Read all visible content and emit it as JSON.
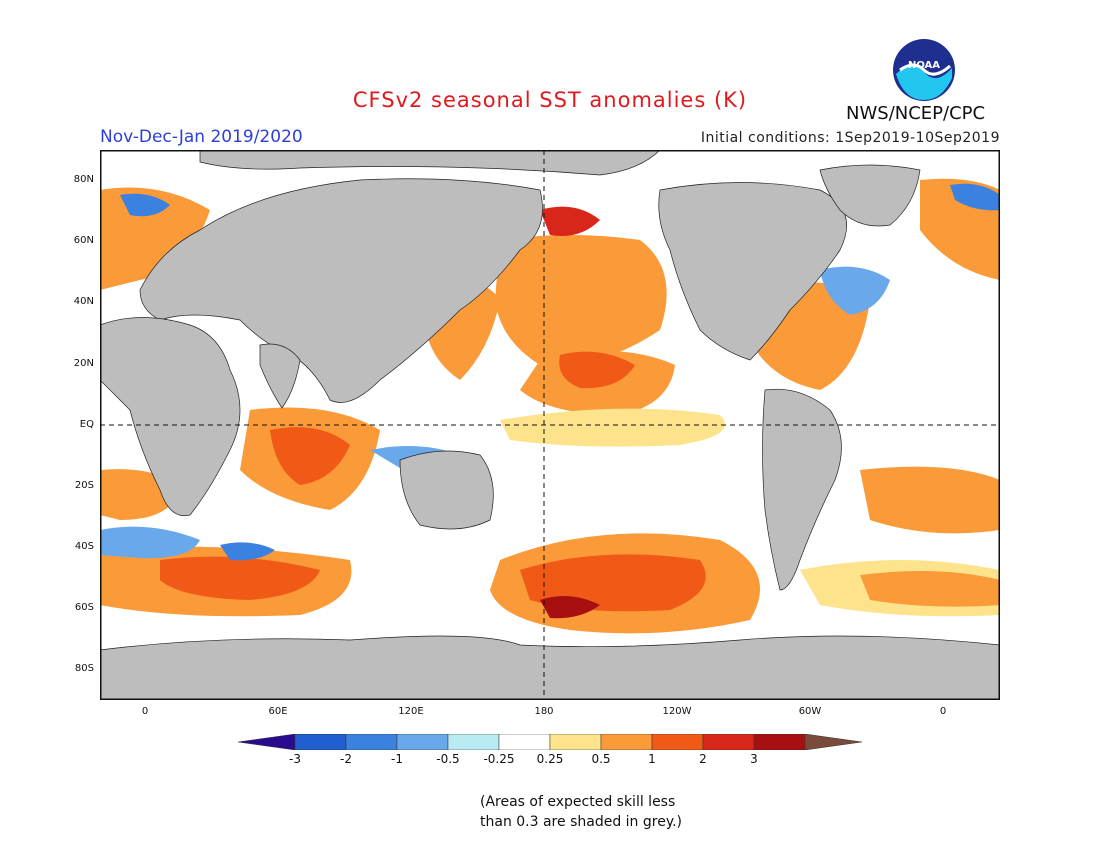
{
  "header": {
    "title": "CFSv2 seasonal SST anomalies (K)",
    "season": "Nov-Dec-Jan 2019/2020",
    "initial_conditions": "Initial conditions: 1Sep2019-10Sep2019",
    "agency": "NWS/NCEP/CPC",
    "logo_text": "NOAA"
  },
  "map": {
    "lat_labels": [
      "80N",
      "60N",
      "40N",
      "20N",
      "EQ",
      "20S",
      "40S",
      "60S",
      "80S"
    ],
    "lon_labels": [
      "0",
      "60E",
      "120E",
      "180",
      "120W",
      "60W",
      "0"
    ]
  },
  "colorbar": {
    "tick_labels": [
      "-3",
      "-2",
      "-1",
      "-0.5",
      "-0.25",
      "0.25",
      "0.5",
      "1",
      "2",
      "3"
    ],
    "colors": [
      "#2a0b8e",
      "#1f5fcf",
      "#3b82e0",
      "#6aa8ec",
      "#b8ecf2",
      "#ffffff",
      "#fde48c",
      "#fa9a38",
      "#f15a16",
      "#d8261a",
      "#a80f10",
      "#7a4a3a"
    ]
  },
  "footnote": {
    "line1": "(Areas of expected skill less",
    "line2": "than 0.3 are shaded in grey.)"
  }
}
